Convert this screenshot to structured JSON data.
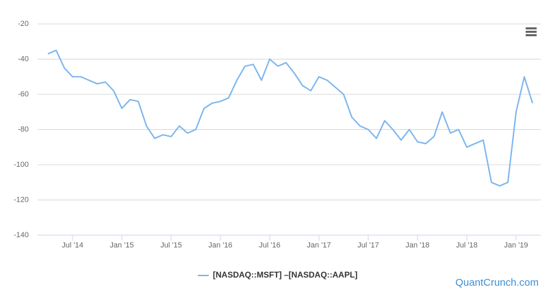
{
  "chart_data": {
    "type": "line",
    "x": [
      "2014-04",
      "2014-05",
      "2014-06",
      "2014-07",
      "2014-08",
      "2014-09",
      "2014-10",
      "2014-11",
      "2014-12",
      "2015-01",
      "2015-02",
      "2015-03",
      "2015-04",
      "2015-05",
      "2015-06",
      "2015-07",
      "2015-08",
      "2015-09",
      "2015-10",
      "2015-11",
      "2015-12",
      "2016-01",
      "2016-02",
      "2016-03",
      "2016-04",
      "2016-05",
      "2016-06",
      "2016-07",
      "2016-08",
      "2016-09",
      "2016-10",
      "2016-11",
      "2016-12",
      "2017-01",
      "2017-02",
      "2017-03",
      "2017-04",
      "2017-05",
      "2017-06",
      "2017-07",
      "2017-08",
      "2017-09",
      "2017-10",
      "2017-11",
      "2017-12",
      "2018-01",
      "2018-02",
      "2018-03",
      "2018-04",
      "2018-05",
      "2018-06",
      "2018-07",
      "2018-08",
      "2018-09",
      "2018-10",
      "2018-11",
      "2018-12",
      "2019-01",
      "2019-02",
      "2019-03"
    ],
    "series": [
      {
        "name": "[NASDAQ::MSFT] –[NASDAQ::AAPL]",
        "color": "#7cb5ec",
        "values": [
          -37,
          -35,
          -45,
          -50,
          -50,
          -52,
          -54,
          -53,
          -58,
          -68,
          -63,
          -64,
          -78,
          -85,
          -83,
          -84,
          -78,
          -82,
          -80,
          -68,
          -65,
          -64,
          -62,
          -52,
          -44,
          -43,
          -52,
          -40,
          -44,
          -42,
          -48,
          -55,
          -58,
          -50,
          -52,
          -56,
          -60,
          -73,
          -78,
          -80,
          -85,
          -75,
          -80,
          -86,
          -80,
          -87,
          -88,
          -84,
          -70,
          -82,
          -80,
          -90,
          -88,
          -86,
          -110,
          -112,
          -110,
          -70,
          -50,
          -65
        ]
      }
    ],
    "xlim": [
      "2014-02",
      "2019-04"
    ],
    "xticks": [
      {
        "value": "2014-07",
        "label": "Jul '14"
      },
      {
        "value": "2015-01",
        "label": "Jan '15"
      },
      {
        "value": "2015-07",
        "label": "Jul '15"
      },
      {
        "value": "2016-01",
        "label": "Jan '16"
      },
      {
        "value": "2016-07",
        "label": "Jul '16"
      },
      {
        "value": "2017-01",
        "label": "Jan '17"
      },
      {
        "value": "2017-07",
        "label": "Jul '17"
      },
      {
        "value": "2018-01",
        "label": "Jan '18"
      },
      {
        "value": "2018-07",
        "label": "Jul '18"
      },
      {
        "value": "2019-01",
        "label": "Jan '19"
      }
    ],
    "ylim": [
      -140,
      -20
    ],
    "yticks": [
      -140,
      -120,
      -100,
      -80,
      -60,
      -40,
      -20
    ],
    "grid": true,
    "credit": "QuantCrunch.com"
  }
}
